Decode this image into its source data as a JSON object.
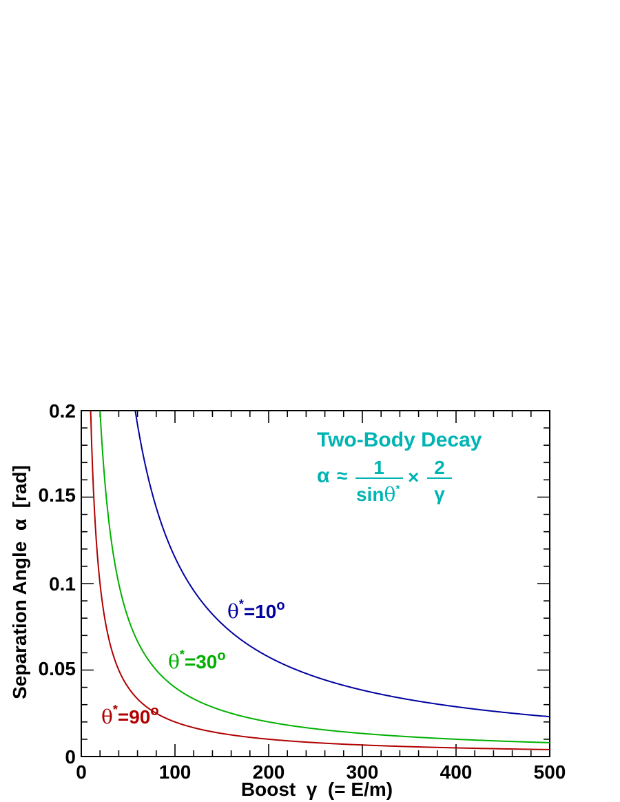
{
  "chart_data": {
    "type": "line",
    "xlabel": "Boost  γ  (= E/m)",
    "ylabel": "Separation Angle  α  [rad]",
    "xlim": [
      0,
      500
    ],
    "ylim": [
      0,
      0.2
    ],
    "x_ticks": [
      "0",
      "100",
      "200",
      "300",
      "400",
      "500"
    ],
    "y_ticks": [
      "0",
      "0.05",
      "0.1",
      "0.15",
      "0.2"
    ],
    "grid": false,
    "series": [
      {
        "name": "θ*=10o",
        "theta_deg": 10,
        "color": "#0000a0",
        "x": [
          58,
          75,
          100,
          150,
          200,
          250,
          300,
          350,
          400,
          450,
          500
        ],
        "y": [
          0.2,
          0.154,
          0.115,
          0.077,
          0.058,
          0.046,
          0.038,
          0.033,
          0.029,
          0.026,
          0.023
        ]
      },
      {
        "name": "θ*=30o",
        "theta_deg": 30,
        "color": "#00b000",
        "x": [
          20,
          30,
          50,
          75,
          100,
          150,
          200,
          250,
          300,
          350,
          400,
          450,
          500
        ],
        "y": [
          0.2,
          0.133,
          0.08,
          0.053,
          0.04,
          0.027,
          0.02,
          0.016,
          0.013,
          0.011,
          0.01,
          0.009,
          0.008
        ]
      },
      {
        "name": "θ*=90o",
        "theta_deg": 90,
        "color": "#b00000",
        "x": [
          10,
          15,
          20,
          30,
          50,
          75,
          100,
          150,
          200,
          250,
          300,
          350,
          400,
          450,
          500
        ],
        "y": [
          0.2,
          0.133,
          0.1,
          0.067,
          0.04,
          0.027,
          0.02,
          0.013,
          0.01,
          0.008,
          0.0067,
          0.0057,
          0.005,
          0.0044,
          0.004
        ]
      }
    ],
    "labels": [
      {
        "theta": "θ",
        "star": "*",
        "rest": "=10",
        "deg": "o",
        "color": "#0000a0"
      },
      {
        "theta": "θ",
        "star": "*",
        "rest": "=30",
        "deg": "o",
        "color": "#00b000"
      },
      {
        "theta": "θ",
        "star": "*",
        "rest": "=90",
        "deg": "o",
        "color": "#b00000"
      }
    ],
    "annotation": {
      "title": "Two-Body Decay",
      "alpha": "α",
      "approx": "≈",
      "num1": "1",
      "den1_sin": "sin",
      "den1_theta": "θ",
      "den1_star": "*",
      "times": "×",
      "num2": "2",
      "den2": "γ",
      "color": "#00b4b4"
    }
  }
}
